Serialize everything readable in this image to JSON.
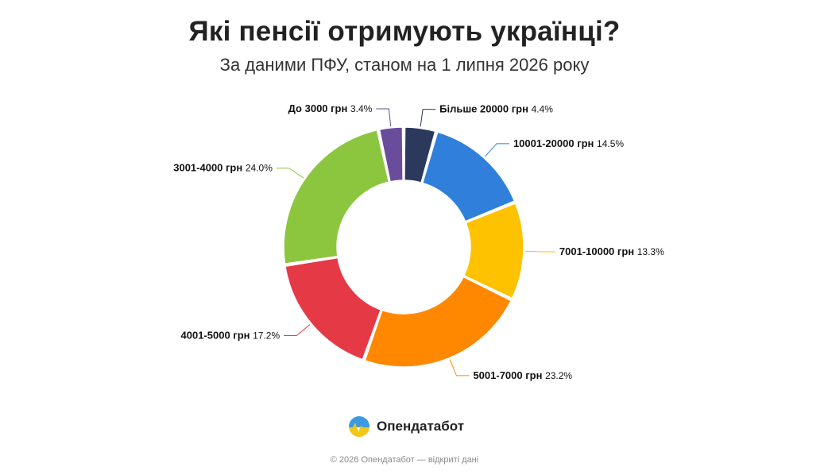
{
  "title": "Які пенсії отримують українці?",
  "subtitle": "За даними ПФУ, станом на 1 липня 2026 року",
  "chart_data": {
    "type": "pie",
    "variant": "donut",
    "unit": "%",
    "title": "Які пенсії отримують українці?",
    "subtitle": "За даними ПФУ, станом на 1 липня 2026 року",
    "slices": [
      {
        "label": "Більше 20000 грн",
        "value": 4.4,
        "value_label": "4.4%",
        "color": "#2b3a5c"
      },
      {
        "label": "10001-20000 грн",
        "value": 14.5,
        "value_label": "14.5%",
        "color": "#2f7fdb"
      },
      {
        "label": "7001-10000 грн",
        "value": 13.3,
        "value_label": "13.3%",
        "color": "#ffc200"
      },
      {
        "label": "5001-7000 грн",
        "value": 23.2,
        "value_label": "23.2%",
        "color": "#ff8800"
      },
      {
        "label": "4001-5000 грн",
        "value": 17.2,
        "value_label": "17.2%",
        "color": "#e63946"
      },
      {
        "label": "3001-4000 грн",
        "value": 24.0,
        "value_label": "24.0%",
        "color": "#8cc63f"
      },
      {
        "label": "До 3000 грн",
        "value": 3.4,
        "value_label": "3.4%",
        "color": "#6a4c9c"
      }
    ],
    "legend": "none (labels beside slices)"
  },
  "brand": {
    "name": "Опендатабот",
    "icon": "opendatabot-logo-icon",
    "colors": {
      "top": "#3d9ae0",
      "bottom": "#f5c518"
    }
  },
  "footer": "© 2026 Опендатабот — відкриті дані"
}
